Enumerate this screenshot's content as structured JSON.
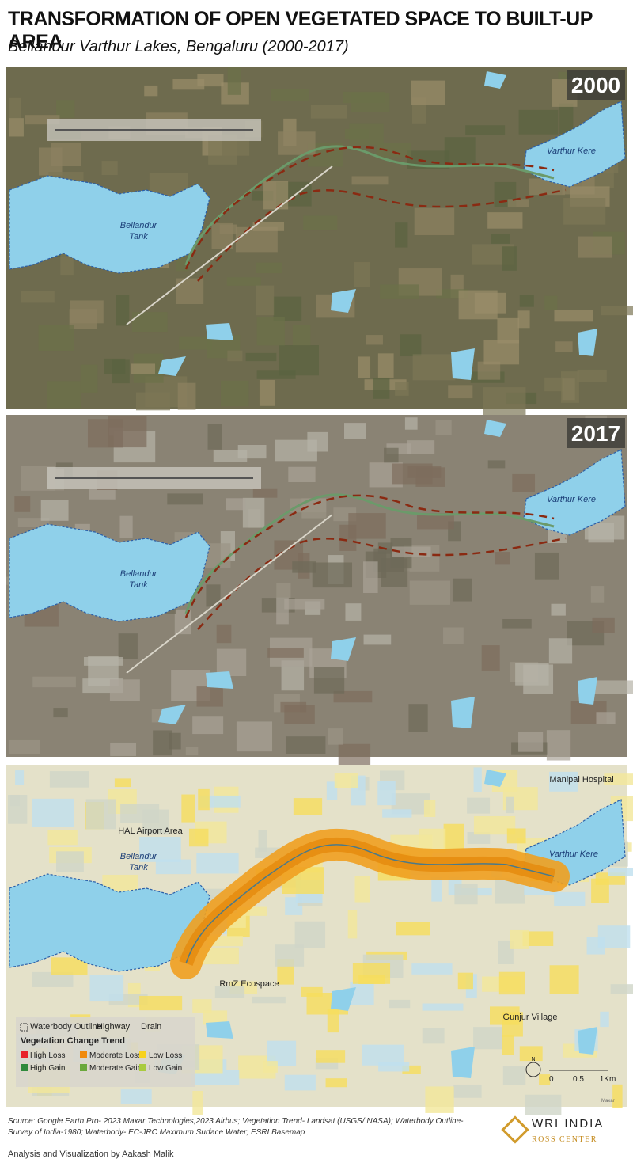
{
  "header": {
    "title": "TRANSFORMATION OF OPEN VEGETATED SPACE TO BUILT-UP AREA",
    "subtitle": "Bellandur Varthur Lakes, Bengaluru (2000-2017)"
  },
  "map_2000": {
    "year": "2000",
    "bellandur": [
      "Bellandur",
      "Tank"
    ],
    "varthur": "Varthur Kere"
  },
  "map_2017": {
    "year": "2017",
    "bellandur": [
      "Bellandur",
      "Tank"
    ],
    "varthur": "Varthur Kere"
  },
  "trend_map": {
    "bellandur": [
      "Bellandur",
      "Tank"
    ],
    "varthur": "Varthur Kere",
    "places": [
      "Manipal Hospital",
      "HAL Airport Area",
      "RmZ Ecospace",
      "Gunjur Village"
    ],
    "credit": "Maxar",
    "north": "N",
    "scale": [
      "0",
      "0.5",
      "1Km"
    ]
  },
  "legend": {
    "outlines": [
      "Waterbody Outline",
      "Highway",
      "Drain"
    ],
    "title": "Vegetation Change Trend",
    "items": [
      {
        "name": "High Loss",
        "color": "#e8232b"
      },
      {
        "name": "Moderate Loss",
        "color": "#f08a0c"
      },
      {
        "name": "Low Loss",
        "color": "#f7d21e"
      },
      {
        "name": "High Gain",
        "color": "#2f8a3c"
      },
      {
        "name": "Moderate Gain",
        "color": "#6aa83c"
      },
      {
        "name": "Low Gain",
        "color": "#a9cb3e"
      }
    ]
  },
  "footer": {
    "source": "Source: Google Earth Pro- 2023 Maxar Technologies,2023 Airbus; Vegetation Trend- Landsat (USGS/ NASA); Waterbody Outline- Survey of India-1980; Waterbody- EC-JRC Maximum Surface Water; ESRI Basemap",
    "credit": "Analysis and Visualization by Aakash Malik",
    "logo": [
      "WRI INDIA",
      "ROSS CENTER"
    ]
  }
}
